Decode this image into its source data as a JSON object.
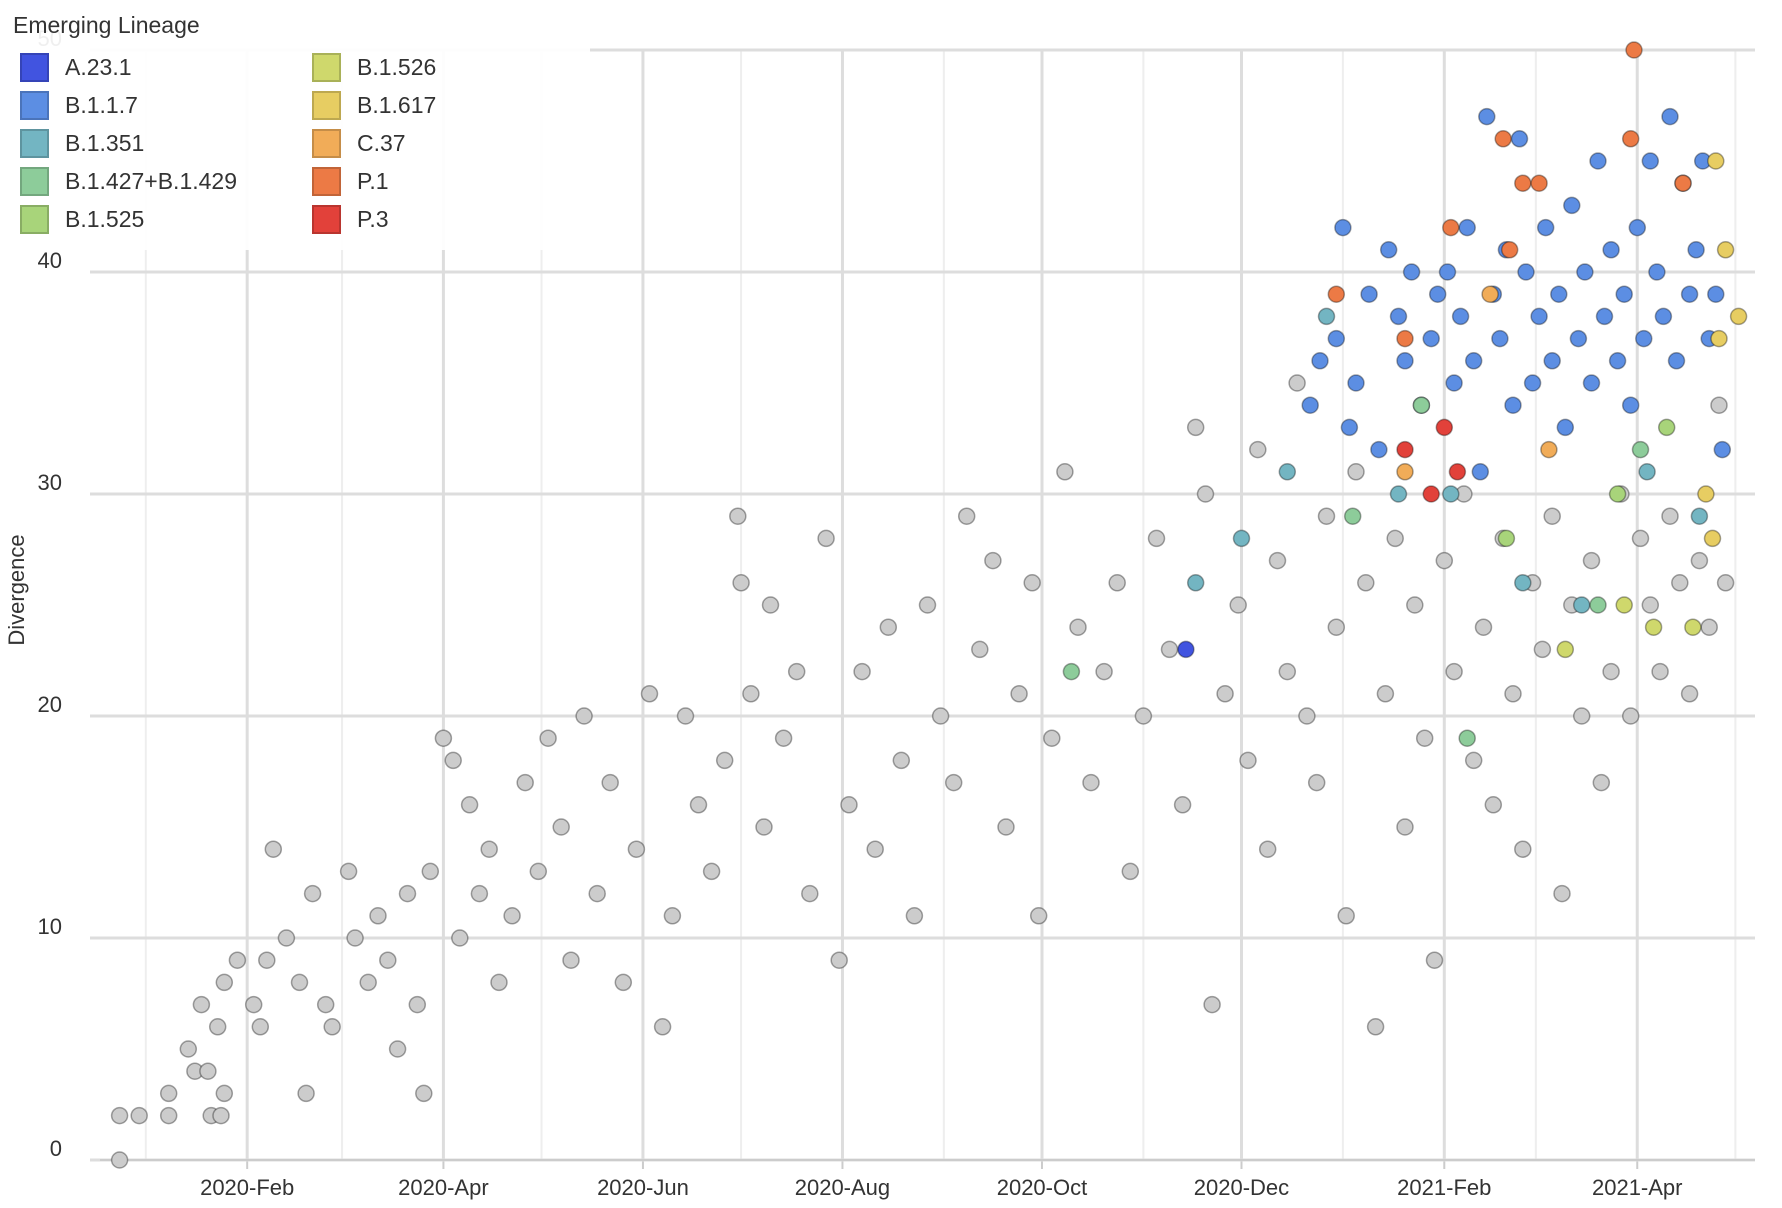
{
  "chart_data": {
    "type": "scatter",
    "xlabel": "",
    "ylabel": "Divergence",
    "x_type": "date",
    "xlim": [
      "2019-12-18",
      "2021-05-07"
    ],
    "ylim": [
      0,
      50
    ],
    "xticks": [
      "2020-02-01",
      "2020-04-01",
      "2020-06-01",
      "2020-08-01",
      "2020-10-01",
      "2020-12-01",
      "2021-02-01",
      "2021-04-01"
    ],
    "xtick_labels": [
      "2020-Feb",
      "2020-Apr",
      "2020-Jun",
      "2020-Aug",
      "2020-Oct",
      "2020-Dec",
      "2021-Feb",
      "2021-Apr"
    ],
    "yticks": [
      0,
      10,
      20,
      30,
      40,
      50
    ],
    "ytick_labels": [
      "0",
      "10",
      "20",
      "30",
      "40",
      "50"
    ],
    "grid": true,
    "legend": {
      "title": "Emerging Lineage",
      "placement": "top-left",
      "items": [
        {
          "name": "A.23.1",
          "color": "#4154e0"
        },
        {
          "name": "B.1.1.7",
          "color": "#5c8ee3"
        },
        {
          "name": "B.1.351",
          "color": "#73b5c2"
        },
        {
          "name": "B.1.427+B.1.429",
          "color": "#8dcc9a"
        },
        {
          "name": "B.1.525",
          "color": "#a8d47a"
        },
        {
          "name": "B.1.526",
          "color": "#cfd86c"
        },
        {
          "name": "B.1.617",
          "color": "#e7cd62"
        },
        {
          "name": "C.37",
          "color": "#f1ac58"
        },
        {
          "name": "P.1",
          "color": "#ec7a45"
        },
        {
          "name": "P.3",
          "color": "#e2413a"
        }
      ]
    },
    "other_color": "#cccccc",
    "series": [
      {
        "name": "A.23.1",
        "color": "#4154e0",
        "points": [
          [
            "2020-11-14",
            23
          ]
        ]
      },
      {
        "name": "B.1.1.7",
        "color": "#5c8ee3",
        "points": [
          [
            "2020-12-22",
            34
          ],
          [
            "2020-12-25",
            36
          ],
          [
            "2020-12-30",
            37
          ],
          [
            "2021-01-01",
            42
          ],
          [
            "2021-01-03",
            33
          ],
          [
            "2021-01-05",
            35
          ],
          [
            "2021-01-09",
            39
          ],
          [
            "2021-01-12",
            32
          ],
          [
            "2021-01-15",
            41
          ],
          [
            "2021-01-18",
            38
          ],
          [
            "2021-01-20",
            36
          ],
          [
            "2021-01-22",
            40
          ],
          [
            "2021-01-25",
            34
          ],
          [
            "2021-01-28",
            37
          ],
          [
            "2021-01-30",
            39
          ],
          [
            "2021-02-02",
            40
          ],
          [
            "2021-02-04",
            35
          ],
          [
            "2021-02-06",
            38
          ],
          [
            "2021-02-08",
            42
          ],
          [
            "2021-02-10",
            36
          ],
          [
            "2021-02-12",
            31
          ],
          [
            "2021-02-14",
            47
          ],
          [
            "2021-02-16",
            39
          ],
          [
            "2021-02-18",
            37
          ],
          [
            "2021-02-20",
            41
          ],
          [
            "2021-02-22",
            34
          ],
          [
            "2021-02-24",
            46
          ],
          [
            "2021-02-26",
            40
          ],
          [
            "2021-02-28",
            35
          ],
          [
            "2021-03-02",
            38
          ],
          [
            "2021-03-04",
            42
          ],
          [
            "2021-03-06",
            36
          ],
          [
            "2021-03-08",
            39
          ],
          [
            "2021-03-10",
            33
          ],
          [
            "2021-03-12",
            43
          ],
          [
            "2021-03-14",
            37
          ],
          [
            "2021-03-16",
            40
          ],
          [
            "2021-03-18",
            35
          ],
          [
            "2021-03-20",
            45
          ],
          [
            "2021-03-22",
            38
          ],
          [
            "2021-03-24",
            41
          ],
          [
            "2021-03-26",
            36
          ],
          [
            "2021-03-28",
            39
          ],
          [
            "2021-03-30",
            34
          ],
          [
            "2021-04-01",
            42
          ],
          [
            "2021-04-03",
            37
          ],
          [
            "2021-04-05",
            45
          ],
          [
            "2021-04-07",
            40
          ],
          [
            "2021-04-09",
            38
          ],
          [
            "2021-04-11",
            47
          ],
          [
            "2021-04-13",
            36
          ],
          [
            "2021-04-15",
            44
          ],
          [
            "2021-04-17",
            39
          ],
          [
            "2021-04-19",
            41
          ],
          [
            "2021-04-21",
            45
          ],
          [
            "2021-04-23",
            37
          ],
          [
            "2021-04-25",
            39
          ],
          [
            "2021-04-27",
            32
          ]
        ]
      },
      {
        "name": "B.1.351",
        "color": "#73b5c2",
        "points": [
          [
            "2020-11-17",
            26
          ],
          [
            "2020-12-01",
            28
          ],
          [
            "2020-12-15",
            31
          ],
          [
            "2020-12-27",
            38
          ],
          [
            "2021-01-18",
            30
          ],
          [
            "2021-02-03",
            30
          ],
          [
            "2021-02-25",
            26
          ],
          [
            "2021-03-15",
            25
          ],
          [
            "2021-04-04",
            31
          ],
          [
            "2021-04-20",
            29
          ]
        ]
      },
      {
        "name": "B.1.427+B.1.429",
        "color": "#8dcc9a",
        "points": [
          [
            "2020-10-10",
            22
          ],
          [
            "2021-01-04",
            29
          ],
          [
            "2021-01-25",
            34
          ],
          [
            "2021-02-08",
            19
          ],
          [
            "2021-03-20",
            25
          ],
          [
            "2021-04-02",
            32
          ]
        ]
      },
      {
        "name": "B.1.525",
        "color": "#a8d47a",
        "points": [
          [
            "2021-02-20",
            28
          ],
          [
            "2021-03-26",
            30
          ],
          [
            "2021-04-10",
            33
          ]
        ]
      },
      {
        "name": "B.1.526",
        "color": "#cfd86c",
        "points": [
          [
            "2021-03-10",
            23
          ],
          [
            "2021-03-28",
            25
          ],
          [
            "2021-04-06",
            24
          ],
          [
            "2021-04-18",
            24
          ]
        ]
      },
      {
        "name": "B.1.617",
        "color": "#e7cd62",
        "points": [
          [
            "2021-04-22",
            30
          ],
          [
            "2021-04-24",
            28
          ],
          [
            "2021-04-25",
            45
          ],
          [
            "2021-04-26",
            37
          ],
          [
            "2021-04-28",
            41
          ],
          [
            "2021-05-02",
            38
          ]
        ]
      },
      {
        "name": "C.37",
        "color": "#f1ac58",
        "points": [
          [
            "2021-01-20",
            31
          ],
          [
            "2021-02-15",
            39
          ],
          [
            "2021-03-05",
            32
          ]
        ]
      },
      {
        "name": "P.1",
        "color": "#ec7a45",
        "points": [
          [
            "2020-12-30",
            39
          ],
          [
            "2021-01-20",
            37
          ],
          [
            "2021-02-03",
            42
          ],
          [
            "2021-02-19",
            46
          ],
          [
            "2021-02-21",
            41
          ],
          [
            "2021-02-25",
            44
          ],
          [
            "2021-03-02",
            44
          ],
          [
            "2021-03-30",
            46
          ],
          [
            "2021-03-31",
            50
          ],
          [
            "2021-04-15",
            44
          ]
        ]
      },
      {
        "name": "P.3",
        "color": "#e2413a",
        "points": [
          [
            "2021-01-20",
            32
          ],
          [
            "2021-02-01",
            33
          ],
          [
            "2021-02-05",
            31
          ],
          [
            "2021-01-28",
            30
          ]
        ]
      }
    ],
    "other_points": [
      [
        "2019-12-24",
        0
      ],
      [
        "2019-12-24",
        2
      ],
      [
        "2019-12-30",
        2
      ],
      [
        "2020-01-08",
        2
      ],
      [
        "2020-01-08",
        3
      ],
      [
        "2020-01-14",
        5
      ],
      [
        "2020-01-16",
        4
      ],
      [
        "2020-01-18",
        7
      ],
      [
        "2020-01-20",
        4
      ],
      [
        "2020-01-21",
        2
      ],
      [
        "2020-01-23",
        6
      ],
      [
        "2020-01-25",
        8
      ],
      [
        "2020-01-25",
        3
      ],
      [
        "2020-01-24",
        2
      ],
      [
        "2020-01-29",
        9
      ],
      [
        "2020-02-03",
        7
      ],
      [
        "2020-02-05",
        6
      ],
      [
        "2020-02-07",
        9
      ],
      [
        "2020-02-09",
        14
      ],
      [
        "2020-02-13",
        10
      ],
      [
        "2020-02-17",
        8
      ],
      [
        "2020-02-19",
        3
      ],
      [
        "2020-02-21",
        12
      ],
      [
        "2020-02-25",
        7
      ],
      [
        "2020-02-27",
        6
      ],
      [
        "2020-03-03",
        13
      ],
      [
        "2020-03-05",
        10
      ],
      [
        "2020-03-09",
        8
      ],
      [
        "2020-03-12",
        11
      ],
      [
        "2020-03-15",
        9
      ],
      [
        "2020-03-18",
        5
      ],
      [
        "2020-03-21",
        12
      ],
      [
        "2020-03-24",
        7
      ],
      [
        "2020-03-26",
        3
      ],
      [
        "2020-03-28",
        13
      ],
      [
        "2020-04-01",
        19
      ],
      [
        "2020-04-04",
        18
      ],
      [
        "2020-04-06",
        10
      ],
      [
        "2020-04-09",
        16
      ],
      [
        "2020-04-12",
        12
      ],
      [
        "2020-04-15",
        14
      ],
      [
        "2020-04-18",
        8
      ],
      [
        "2020-04-22",
        11
      ],
      [
        "2020-04-26",
        17
      ],
      [
        "2020-04-30",
        13
      ],
      [
        "2020-05-03",
        19
      ],
      [
        "2020-05-07",
        15
      ],
      [
        "2020-05-10",
        9
      ],
      [
        "2020-05-14",
        20
      ],
      [
        "2020-05-18",
        12
      ],
      [
        "2020-05-22",
        17
      ],
      [
        "2020-05-26",
        8
      ],
      [
        "2020-05-30",
        14
      ],
      [
        "2020-06-03",
        21
      ],
      [
        "2020-06-07",
        6
      ],
      [
        "2020-06-10",
        11
      ],
      [
        "2020-06-14",
        20
      ],
      [
        "2020-06-18",
        16
      ],
      [
        "2020-06-22",
        13
      ],
      [
        "2020-06-26",
        18
      ],
      [
        "2020-06-30",
        29
      ],
      [
        "2020-07-01",
        26
      ],
      [
        "2020-07-04",
        21
      ],
      [
        "2020-07-08",
        15
      ],
      [
        "2020-07-10",
        25
      ],
      [
        "2020-07-14",
        19
      ],
      [
        "2020-07-18",
        22
      ],
      [
        "2020-07-22",
        12
      ],
      [
        "2020-07-27",
        28
      ],
      [
        "2020-07-31",
        9
      ],
      [
        "2020-08-03",
        16
      ],
      [
        "2020-08-07",
        22
      ],
      [
        "2020-08-11",
        14
      ],
      [
        "2020-08-15",
        24
      ],
      [
        "2020-08-19",
        18
      ],
      [
        "2020-08-23",
        11
      ],
      [
        "2020-08-27",
        25
      ],
      [
        "2020-08-31",
        20
      ],
      [
        "2020-09-04",
        17
      ],
      [
        "2020-09-08",
        29
      ],
      [
        "2020-09-12",
        23
      ],
      [
        "2020-09-16",
        27
      ],
      [
        "2020-09-20",
        15
      ],
      [
        "2020-09-24",
        21
      ],
      [
        "2020-09-28",
        26
      ],
      [
        "2020-09-30",
        11
      ],
      [
        "2020-10-04",
        19
      ],
      [
        "2020-10-08",
        31
      ],
      [
        "2020-10-12",
        24
      ],
      [
        "2020-10-16",
        17
      ],
      [
        "2020-10-20",
        22
      ],
      [
        "2020-10-24",
        26
      ],
      [
        "2020-10-28",
        13
      ],
      [
        "2020-11-01",
        20
      ],
      [
        "2020-11-05",
        28
      ],
      [
        "2020-11-09",
        23
      ],
      [
        "2020-11-13",
        16
      ],
      [
        "2020-11-17",
        33
      ],
      [
        "2020-11-20",
        30
      ],
      [
        "2020-11-22",
        7
      ],
      [
        "2020-11-26",
        21
      ],
      [
        "2020-11-30",
        25
      ],
      [
        "2020-12-03",
        18
      ],
      [
        "2020-12-06",
        32
      ],
      [
        "2020-12-09",
        14
      ],
      [
        "2020-12-12",
        27
      ],
      [
        "2020-12-15",
        22
      ],
      [
        "2020-12-18",
        35
      ],
      [
        "2020-12-21",
        20
      ],
      [
        "2020-12-24",
        17
      ],
      [
        "2020-12-27",
        29
      ],
      [
        "2020-12-30",
        24
      ],
      [
        "2021-01-02",
        11
      ],
      [
        "2021-01-05",
        31
      ],
      [
        "2021-01-08",
        26
      ],
      [
        "2021-01-11",
        6
      ],
      [
        "2021-01-14",
        21
      ],
      [
        "2021-01-17",
        28
      ],
      [
        "2021-01-20",
        15
      ],
      [
        "2021-01-23",
        25
      ],
      [
        "2021-01-26",
        19
      ],
      [
        "2021-01-29",
        9
      ],
      [
        "2021-02-01",
        27
      ],
      [
        "2021-02-04",
        22
      ],
      [
        "2021-02-07",
        30
      ],
      [
        "2021-02-10",
        18
      ],
      [
        "2021-02-13",
        24
      ],
      [
        "2021-02-16",
        16
      ],
      [
        "2021-02-19",
        28
      ],
      [
        "2021-02-22",
        21
      ],
      [
        "2021-02-25",
        14
      ],
      [
        "2021-02-28",
        26
      ],
      [
        "2021-03-03",
        23
      ],
      [
        "2021-03-06",
        29
      ],
      [
        "2021-03-09",
        12
      ],
      [
        "2021-03-12",
        25
      ],
      [
        "2021-03-15",
        20
      ],
      [
        "2021-03-18",
        27
      ],
      [
        "2021-03-21",
        17
      ],
      [
        "2021-03-24",
        22
      ],
      [
        "2021-03-27",
        30
      ],
      [
        "2021-03-30",
        20
      ],
      [
        "2021-04-02",
        28
      ],
      [
        "2021-04-05",
        25
      ],
      [
        "2021-04-08",
        22
      ],
      [
        "2021-04-11",
        29
      ],
      [
        "2021-04-14",
        26
      ],
      [
        "2021-04-17",
        21
      ],
      [
        "2021-04-20",
        27
      ],
      [
        "2021-04-23",
        24
      ],
      [
        "2021-04-26",
        34
      ],
      [
        "2021-04-28",
        26
      ]
    ]
  }
}
